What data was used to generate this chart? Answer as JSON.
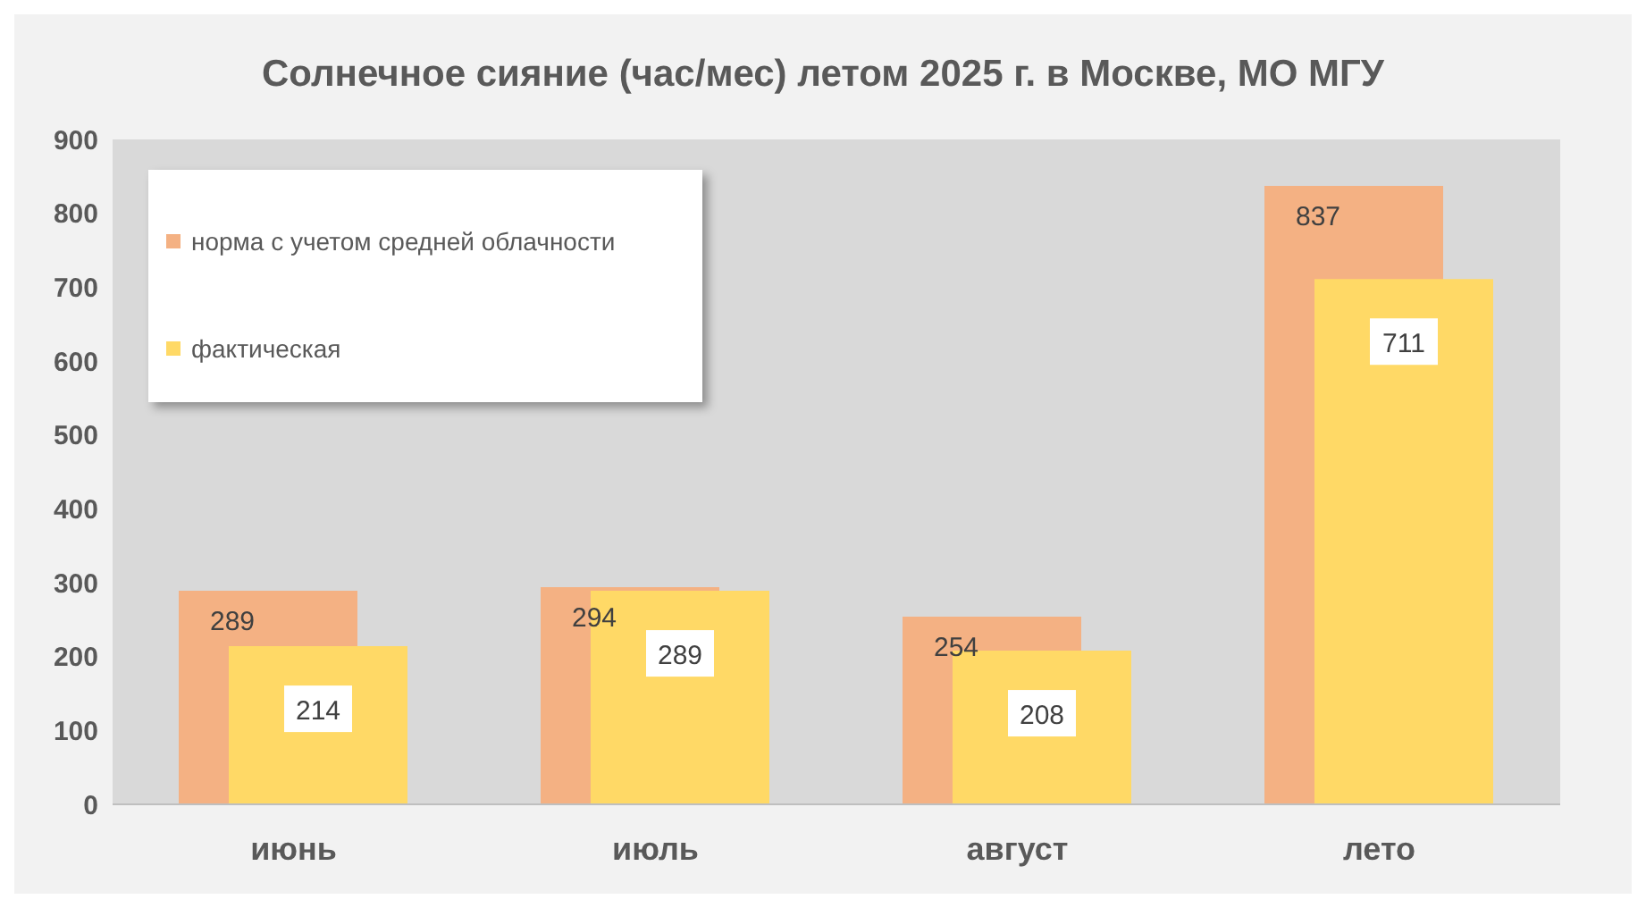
{
  "chart_data": {
    "type": "bar",
    "title": "Солнечное сияние (час/мес) летом 2025 г. в Москве, МО МГУ",
    "categories": [
      "июнь",
      "июль",
      "август",
      "лето"
    ],
    "series": [
      {
        "name": "норма с учетом средней облачности",
        "color": "#f4b183",
        "values": [
          289,
          294,
          254,
          837
        ]
      },
      {
        "name": "фактическая",
        "color": "#ffd966",
        "values": [
          214,
          289,
          208,
          711
        ]
      }
    ],
    "ylim": [
      0,
      900
    ],
    "yticks": [
      0,
      100,
      200,
      300,
      400,
      500,
      600,
      700,
      800,
      900
    ],
    "grid": false,
    "legend": "top left",
    "data_labels": true
  }
}
